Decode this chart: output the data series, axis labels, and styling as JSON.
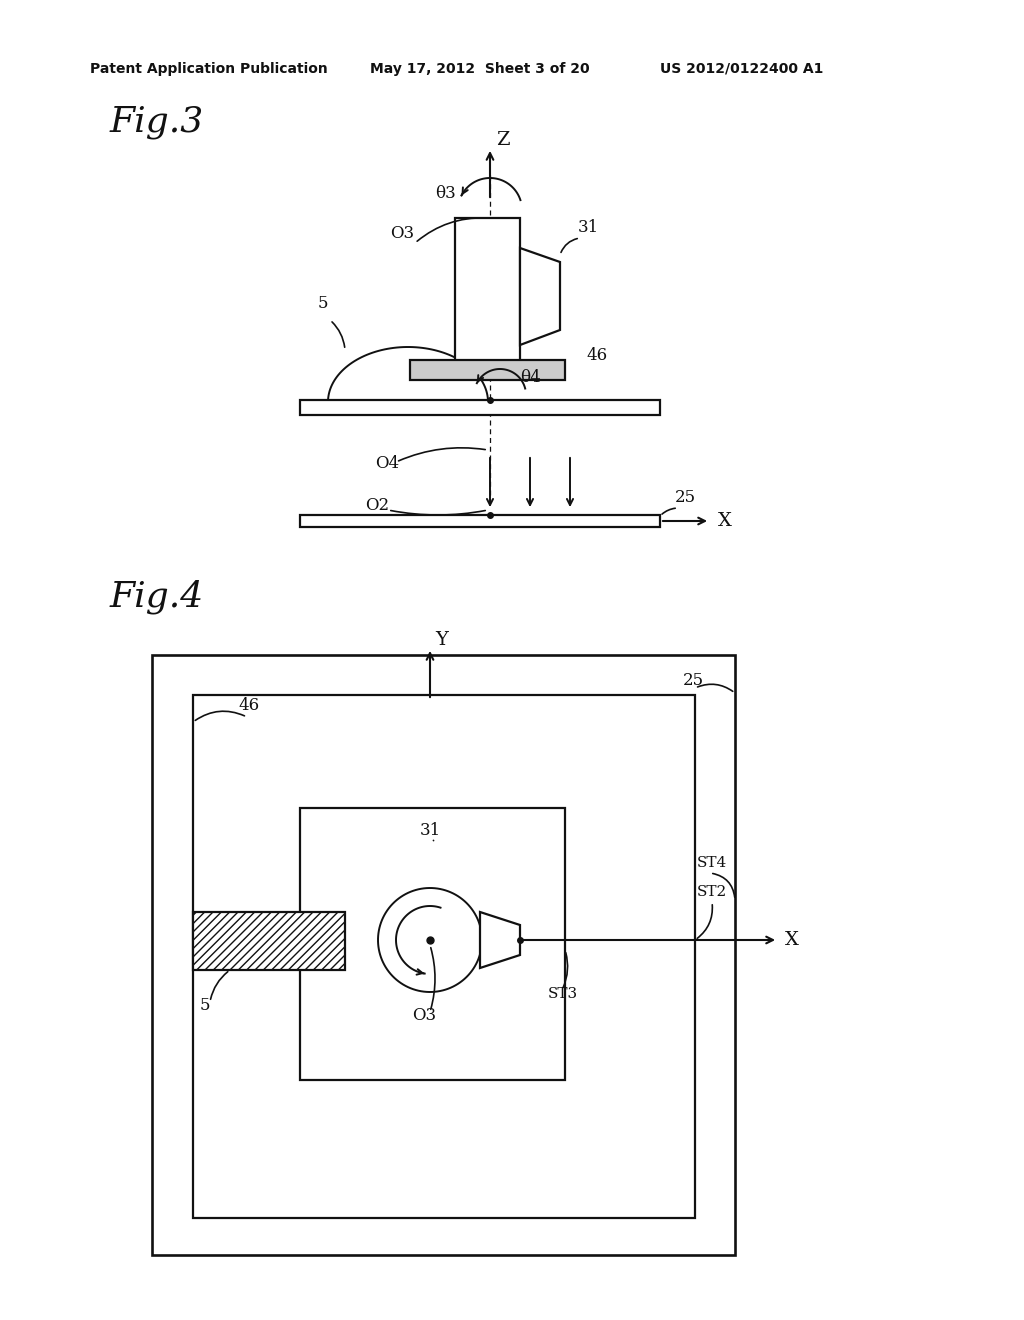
{
  "bg_color": "#ffffff",
  "header_left": "Patent Application Publication",
  "header_mid": "May 17, 2012  Sheet 3 of 20",
  "header_right": "US 2012/0122400 A1",
  "fig3_label": "Fig.3",
  "fig4_label": "Fig.4"
}
